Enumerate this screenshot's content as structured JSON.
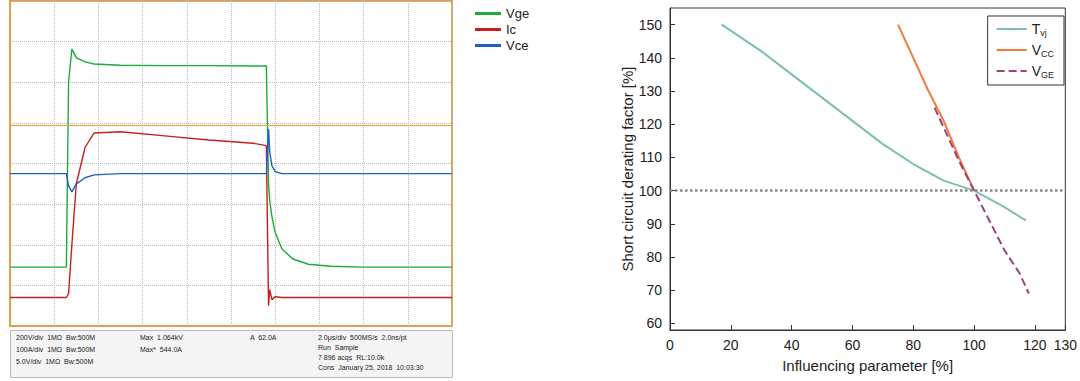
{
  "chart_data": [
    {
      "type": "line",
      "x": [
        -10,
        -7.45,
        -7.35,
        -7.2,
        -7.0,
        -6.6,
        -6.2,
        -5.0,
        -3.0,
        -1.0,
        1.0,
        1.6,
        1.7,
        1.75,
        1.85,
        2.0,
        2.3,
        2.8,
        3.5,
        4.5,
        6,
        10
      ],
      "series": [
        {
          "name": "Vge",
          "color": "#1aab3c",
          "values": [
            -2.55,
            -2.55,
            2.0,
            2.82,
            2.6,
            2.5,
            2.45,
            2.42,
            2.41,
            2.41,
            2.4,
            2.4,
            -0.5,
            -0.9,
            -1.3,
            -1.7,
            -2.1,
            -2.35,
            -2.48,
            -2.53,
            -2.55,
            -2.55
          ]
        },
        {
          "name": "Ic",
          "color": "#c4201e",
          "trigger_level": 0.95,
          "values": [
            -3.3,
            -3.3,
            -3.2,
            -2.0,
            -0.5,
            0.4,
            0.75,
            0.78,
            0.68,
            0.58,
            0.5,
            0.44,
            -3.5,
            -3.1,
            -3.35,
            -3.28,
            -3.3,
            -3.3,
            -3.3,
            -3.3,
            -3.3,
            -3.3
          ]
        },
        {
          "name": "Vce",
          "color": "#1f5fc4",
          "values": [
            -0.25,
            -0.25,
            -0.55,
            -0.7,
            -0.5,
            -0.35,
            -0.28,
            -0.25,
            -0.25,
            -0.25,
            -0.25,
            -0.25,
            0.85,
            0.3,
            -0.05,
            -0.2,
            -0.25,
            -0.25,
            -0.25,
            -0.25,
            -0.25,
            -0.25
          ]
        }
      ],
      "xlim": [
        -10,
        10
      ],
      "xticks": [
        -10,
        -8,
        -6,
        -4,
        -2,
        0,
        2,
        4,
        6,
        8,
        10
      ],
      "ylim": [
        -4,
        4
      ],
      "yticks": [
        -4,
        -3,
        -2,
        -1,
        0,
        1,
        2,
        3,
        4
      ],
      "grid": true,
      "tick_labels": false,
      "legend": "outside upper right",
      "annotations": {
        "channels": [
          [
            "200V/div",
            "1MΩ",
            "Bw:500M"
          ],
          [
            "100A/div",
            "1MΩ",
            "Bw:500M"
          ],
          [
            "5.0V/div",
            "1MΩ",
            "Bw:500M"
          ]
        ],
        "measurements": [
          [
            "Max",
            "1.064kV"
          ],
          [
            "Max*",
            "544.0A"
          ]
        ],
        "trigger": [
          "A",
          "62.0A"
        ],
        "timebase": [
          "2.0μs/div",
          "500MS/s",
          "2.0ns/pt"
        ],
        "acquisition": [
          [
            "Run",
            "Sample"
          ],
          [
            "7 896 acqs",
            "RL:10.0k"
          ]
        ],
        "status": [
          "Cons",
          "January 25, 2018",
          "10:03:30"
        ]
      }
    },
    {
      "type": "line",
      "x_label": "Influencing parameter [%]",
      "y_label": "Short circuit derating factor [%]",
      "series": [
        {
          "name": "Tvj",
          "color": "#7dbfa7",
          "line_style": "solid",
          "marker": "none",
          "x": [
            17,
            30,
            40,
            50,
            60,
            70,
            80,
            90,
            100,
            110,
            117
          ],
          "values": [
            150,
            142,
            135,
            128,
            121,
            114,
            108,
            103,
            100,
            95,
            91
          ]
        },
        {
          "name": "VCC",
          "color": "#f07b3b",
          "line_style": "solid",
          "marker": "none",
          "x": [
            75,
            80,
            85,
            90,
            95,
            100
          ],
          "values": [
            150,
            140,
            130,
            121,
            110,
            100
          ]
        },
        {
          "name": "VGE",
          "color": "#a0407a",
          "line_style": "dashed",
          "marker": "none",
          "x": [
            87,
            90,
            95,
            100,
            105,
            110,
            115,
            118
          ],
          "values": [
            125,
            119,
            109,
            100,
            91,
            82,
            75,
            69
          ]
        }
      ],
      "reference_line": 100,
      "xlim": [
        0,
        130
      ],
      "xticks": [
        0,
        20,
        40,
        60,
        80,
        100,
        120
      ],
      "ylim": [
        58,
        155
      ],
      "yticks": [
        60,
        70,
        80,
        90,
        100,
        110,
        120,
        130,
        140,
        150
      ],
      "grid": false,
      "legend": "upper right"
    }
  ]
}
